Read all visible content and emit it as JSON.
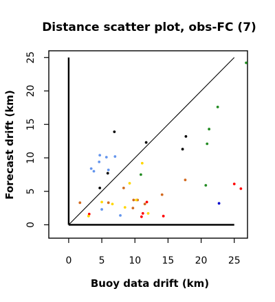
{
  "chart_data": {
    "type": "scatter",
    "title": "Distance scatter plot, obs-FC (7)",
    "xlabel": "Buoy data drift (km)",
    "ylabel": "Forecast drift (km)",
    "xlim": [
      -3,
      27
    ],
    "ylim": [
      -2,
      26
    ],
    "xticks": [
      "0",
      "5",
      "10",
      "15",
      "20",
      "25"
    ],
    "yticks": [
      "0",
      "5",
      "10",
      "15",
      "20",
      "25"
    ],
    "grid": false,
    "legend": "none",
    "reference_line": {
      "x": [
        0,
        25
      ],
      "y": [
        0,
        25
      ]
    },
    "frame_axes": {
      "x": [
        0,
        25
      ],
      "y": [
        0,
        25
      ]
    },
    "series": [
      {
        "color": "#6495ed",
        "points": [
          {
            "x": 3.4,
            "y": 8.4
          },
          {
            "x": 3.8,
            "y": 8.0
          },
          {
            "x": 4.7,
            "y": 10.4
          },
          {
            "x": 4.6,
            "y": 9.4
          },
          {
            "x": 5.7,
            "y": 10.1
          },
          {
            "x": 6.0,
            "y": 8.2
          },
          {
            "x": 7.0,
            "y": 10.2
          },
          {
            "x": 7.8,
            "y": 1.4
          },
          {
            "x": 5.0,
            "y": 2.3
          }
        ]
      },
      {
        "color": "#000000",
        "points": [
          {
            "x": 6.9,
            "y": 13.9
          },
          {
            "x": 11.7,
            "y": 12.3
          },
          {
            "x": 17.7,
            "y": 13.2
          },
          {
            "x": 17.2,
            "y": 11.3
          },
          {
            "x": 5.9,
            "y": 7.7
          },
          {
            "x": 4.7,
            "y": 5.5
          }
        ]
      },
      {
        "color": "#228b22",
        "points": [
          {
            "x": 22.5,
            "y": 17.6
          },
          {
            "x": 21.2,
            "y": 14.3
          },
          {
            "x": 20.9,
            "y": 12.1
          },
          {
            "x": 20.7,
            "y": 5.9
          },
          {
            "x": 10.9,
            "y": 7.5
          },
          {
            "x": 26.8,
            "y": 24.2
          }
        ]
      },
      {
        "color": "#ff0000",
        "points": [
          {
            "x": 25.0,
            "y": 6.1
          },
          {
            "x": 26.0,
            "y": 5.4
          },
          {
            "x": 14.3,
            "y": 1.3
          },
          {
            "x": 11.0,
            "y": 1.2
          },
          {
            "x": 11.8,
            "y": 3.4
          },
          {
            "x": 11.2,
            "y": 1.7
          },
          {
            "x": 3.1,
            "y": 1.6
          }
        ]
      },
      {
        "color": "#0000cd",
        "points": [
          {
            "x": 22.7,
            "y": 3.2
          }
        ]
      },
      {
        "color": "#d2691e",
        "points": [
          {
            "x": 17.6,
            "y": 6.7
          },
          {
            "x": 14.1,
            "y": 4.5
          },
          {
            "x": 11.5,
            "y": 3.1
          },
          {
            "x": 8.3,
            "y": 5.5
          },
          {
            "x": 6.0,
            "y": 3.3
          },
          {
            "x": 1.7,
            "y": 3.3
          },
          {
            "x": 9.8,
            "y": 3.7
          },
          {
            "x": 9.7,
            "y": 2.5
          },
          {
            "x": 10.4,
            "y": 3.7
          }
        ]
      },
      {
        "color": "#ffd700",
        "points": [
          {
            "x": 11.1,
            "y": 9.2
          },
          {
            "x": 9.2,
            "y": 6.2
          },
          {
            "x": 5.0,
            "y": 3.4
          },
          {
            "x": 6.6,
            "y": 3.1
          },
          {
            "x": 8.5,
            "y": 2.6
          },
          {
            "x": 10.2,
            "y": 3.7
          },
          {
            "x": 12.0,
            "y": 1.7
          },
          {
            "x": 3.0,
            "y": 1.3
          }
        ]
      }
    ]
  }
}
